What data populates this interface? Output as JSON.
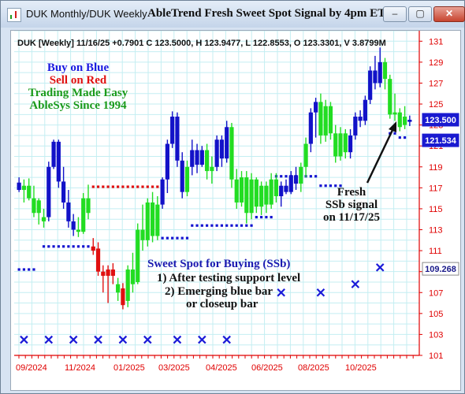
{
  "window": {
    "title": "DUK Monthly/DUK Weekly",
    "chart_title": "AbleTrend Fresh Sweet Spot Signal by 4pm ET",
    "buttons": {
      "minimize": "–",
      "restore": "▢",
      "close": "✕"
    }
  },
  "header_line": "DUK [Weekly] 11/16/25 +0.7901 C 123.5000, H 123.9477, L 122.8553, O 123.3301, V 3.8799M",
  "legend": {
    "line1": "Buy on Blue",
    "line2": "Sell on Red",
    "line3": "Trading Made Easy",
    "line4": "AbleSys Since 1994"
  },
  "ssb_note": {
    "title": "Sweet Spot for Buying (SSb)",
    "line1": "1) After testing support level",
    "line2": "2) Emerging blue bar",
    "line3": "or closeup bar"
  },
  "signal_note": {
    "line1": "Fresh",
    "line2": "SSb signal",
    "line3": "on 11/17/25"
  },
  "colors": {
    "blue_bar": "#1212c8",
    "green_bar": "#22dd22",
    "red_bar": "#e01010",
    "grid": "#c4eef2",
    "axis_red": "#e00000"
  },
  "chart_data": {
    "type": "candlestick",
    "ylim": [
      101,
      132
    ],
    "yticks": [
      "101",
      "103",
      "105",
      "107",
      "109",
      "111",
      "113",
      "115",
      "117",
      "119",
      "121",
      "123",
      "125",
      "127",
      "129",
      "131"
    ],
    "xticks": [
      "09/2024",
      "11/2024",
      "01/2025",
      "03/2025",
      "04/2025",
      "06/2025",
      "08/2025",
      "10/2025"
    ],
    "price_labels": [
      {
        "value": 123.5,
        "text": "123.500",
        "style": "blue"
      },
      {
        "value": 121.534,
        "text": "121.534",
        "style": "blue"
      },
      {
        "value": 109.268,
        "text": "109.268",
        "style": "white"
      }
    ],
    "bars": [
      {
        "o": 117.5,
        "h": 118,
        "l": 116.6,
        "c": 116.8,
        "color": "blue"
      },
      {
        "o": 116.8,
        "h": 117.8,
        "l": 115.6,
        "c": 117.2,
        "color": "green"
      },
      {
        "o": 117.2,
        "h": 117.9,
        "l": 115.8,
        "c": 116,
        "color": "green"
      },
      {
        "o": 116,
        "h": 117.2,
        "l": 114.2,
        "c": 114.6,
        "color": "green"
      },
      {
        "o": 114.6,
        "h": 116,
        "l": 113.5,
        "c": 115.8,
        "color": "green"
      },
      {
        "o": 113.8,
        "h": 115,
        "l": 113.2,
        "c": 114.2,
        "color": "green"
      },
      {
        "o": 114.2,
        "h": 119.5,
        "l": 113.8,
        "c": 119,
        "color": "blue"
      },
      {
        "o": 119,
        "h": 121.6,
        "l": 118.8,
        "c": 121.4,
        "color": "blue"
      },
      {
        "o": 121.4,
        "h": 121.6,
        "l": 117,
        "c": 117.6,
        "color": "blue"
      },
      {
        "o": 117.6,
        "h": 119,
        "l": 115,
        "c": 115.6,
        "color": "blue"
      },
      {
        "o": 115.6,
        "h": 116.8,
        "l": 113.2,
        "c": 113.8,
        "color": "blue"
      },
      {
        "o": 113.8,
        "h": 114.5,
        "l": 112.4,
        "c": 113,
        "color": "blue"
      },
      {
        "o": 113,
        "h": 114.2,
        "l": 112.3,
        "c": 112.8,
        "color": "green"
      },
      {
        "o": 112.8,
        "h": 116.5,
        "l": 112.6,
        "c": 116,
        "color": "green"
      },
      {
        "o": 116,
        "h": 117.3,
        "l": 114,
        "c": 114.6,
        "color": "green"
      },
      {
        "o": 111.4,
        "h": 112.2,
        "l": 110.6,
        "c": 111,
        "color": "red"
      },
      {
        "o": 111.2,
        "h": 111.8,
        "l": 108.6,
        "c": 109,
        "color": "red"
      },
      {
        "o": 109,
        "h": 109.6,
        "l": 107,
        "c": 108.6,
        "color": "red"
      },
      {
        "o": 108.6,
        "h": 109.6,
        "l": 106,
        "c": 109.2,
        "color": "red"
      },
      {
        "o": 109.2,
        "h": 109.8,
        "l": 107.8,
        "c": 108.6,
        "color": "red"
      },
      {
        "o": 107.8,
        "h": 108.4,
        "l": 106.2,
        "c": 107,
        "color": "green"
      },
      {
        "o": 107.4,
        "h": 107.9,
        "l": 105.4,
        "c": 105.8,
        "color": "red"
      },
      {
        "o": 106.2,
        "h": 109.6,
        "l": 105.6,
        "c": 109.2,
        "color": "green"
      },
      {
        "o": 109.2,
        "h": 110.8,
        "l": 107,
        "c": 107.8,
        "color": "green"
      },
      {
        "o": 108,
        "h": 113.6,
        "l": 107.8,
        "c": 113,
        "color": "green"
      },
      {
        "o": 113,
        "h": 115.4,
        "l": 111,
        "c": 112,
        "color": "green"
      },
      {
        "o": 112,
        "h": 116,
        "l": 111.4,
        "c": 115.6,
        "color": "green"
      },
      {
        "o": 115.6,
        "h": 116.6,
        "l": 111.8,
        "c": 112.4,
        "color": "green"
      },
      {
        "o": 112.4,
        "h": 116.2,
        "l": 112,
        "c": 115.4,
        "color": "green"
      },
      {
        "o": 115.4,
        "h": 118,
        "l": 115,
        "c": 117.8,
        "color": "blue"
      },
      {
        "o": 117.8,
        "h": 121.6,
        "l": 116.5,
        "c": 121.2,
        "color": "blue"
      },
      {
        "o": 121.2,
        "h": 124.3,
        "l": 120.8,
        "c": 123.8,
        "color": "blue"
      },
      {
        "o": 123.8,
        "h": 124.2,
        "l": 119,
        "c": 119.6,
        "color": "blue"
      },
      {
        "o": 119.6,
        "h": 120.4,
        "l": 116,
        "c": 116.6,
        "color": "blue"
      },
      {
        "o": 116.6,
        "h": 119.6,
        "l": 116.2,
        "c": 119,
        "color": "green"
      },
      {
        "o": 119,
        "h": 121.6,
        "l": 118.2,
        "c": 120.6,
        "color": "blue"
      },
      {
        "o": 120.6,
        "h": 121.2,
        "l": 118.4,
        "c": 119.2,
        "color": "blue"
      },
      {
        "o": 119.2,
        "h": 121,
        "l": 119,
        "c": 120.6,
        "color": "blue"
      },
      {
        "o": 120.6,
        "h": 121.2,
        "l": 117.8,
        "c": 118.6,
        "color": "green"
      },
      {
        "o": 118.6,
        "h": 120,
        "l": 117.4,
        "c": 119,
        "color": "green"
      },
      {
        "o": 119,
        "h": 122,
        "l": 118.6,
        "c": 121.6,
        "color": "blue"
      },
      {
        "o": 121.6,
        "h": 122,
        "l": 119,
        "c": 119.8,
        "color": "blue"
      },
      {
        "o": 119.8,
        "h": 123.4,
        "l": 119.4,
        "c": 122.8,
        "color": "blue"
      },
      {
        "o": 122.8,
        "h": 123.2,
        "l": 117,
        "c": 117.8,
        "color": "green"
      },
      {
        "o": 117.8,
        "h": 118.8,
        "l": 115,
        "c": 115.6,
        "color": "green"
      },
      {
        "o": 115.6,
        "h": 118.6,
        "l": 115.2,
        "c": 118,
        "color": "green"
      },
      {
        "o": 118,
        "h": 118.6,
        "l": 113.6,
        "c": 114.6,
        "color": "green"
      },
      {
        "o": 114.6,
        "h": 118.4,
        "l": 114,
        "c": 117.8,
        "color": "green"
      },
      {
        "o": 117.8,
        "h": 118,
        "l": 114.6,
        "c": 115.2,
        "color": "green"
      },
      {
        "o": 115.2,
        "h": 117.6,
        "l": 114.4,
        "c": 117.2,
        "color": "green"
      },
      {
        "o": 117.2,
        "h": 117.6,
        "l": 114.6,
        "c": 115.4,
        "color": "green"
      },
      {
        "o": 115.4,
        "h": 118.4,
        "l": 115,
        "c": 117.8,
        "color": "green"
      },
      {
        "o": 117.8,
        "h": 118.4,
        "l": 115.6,
        "c": 116.2,
        "color": "green"
      },
      {
        "o": 116.2,
        "h": 117.6,
        "l": 115.2,
        "c": 117.2,
        "color": "blue"
      },
      {
        "o": 117.2,
        "h": 117.8,
        "l": 116.4,
        "c": 116.6,
        "color": "blue"
      },
      {
        "o": 116.6,
        "h": 118.6,
        "l": 116.4,
        "c": 118.2,
        "color": "blue"
      },
      {
        "o": 118.2,
        "h": 119,
        "l": 116.8,
        "c": 117.4,
        "color": "blue"
      },
      {
        "o": 117.4,
        "h": 119.4,
        "l": 116.6,
        "c": 119,
        "color": "green"
      },
      {
        "o": 119,
        "h": 121.8,
        "l": 118,
        "c": 121.2,
        "color": "green"
      },
      {
        "o": 121.2,
        "h": 124.6,
        "l": 120.4,
        "c": 124.2,
        "color": "blue"
      },
      {
        "o": 124.2,
        "h": 125.6,
        "l": 121.8,
        "c": 125.2,
        "color": "blue"
      },
      {
        "o": 125.2,
        "h": 126,
        "l": 121.2,
        "c": 122,
        "color": "green"
      },
      {
        "o": 122,
        "h": 125.4,
        "l": 121.4,
        "c": 124.8,
        "color": "green"
      },
      {
        "o": 124.8,
        "h": 125.2,
        "l": 121.6,
        "c": 122.2,
        "color": "green"
      },
      {
        "o": 122.2,
        "h": 123,
        "l": 119.4,
        "c": 120,
        "color": "green"
      },
      {
        "o": 120,
        "h": 122.8,
        "l": 119.6,
        "c": 122.2,
        "color": "green"
      },
      {
        "o": 122.2,
        "h": 122.6,
        "l": 119.8,
        "c": 120.4,
        "color": "green"
      },
      {
        "o": 120.4,
        "h": 122.6,
        "l": 119.8,
        "c": 122,
        "color": "blue"
      },
      {
        "o": 122,
        "h": 124.2,
        "l": 121.6,
        "c": 123.8,
        "color": "blue"
      },
      {
        "o": 123.8,
        "h": 124.4,
        "l": 122.8,
        "c": 123.4,
        "color": "blue"
      },
      {
        "o": 123.4,
        "h": 125.8,
        "l": 123,
        "c": 125.4,
        "color": "blue"
      },
      {
        "o": 125.4,
        "h": 128.6,
        "l": 125,
        "c": 128.2,
        "color": "blue"
      },
      {
        "o": 128.2,
        "h": 129.6,
        "l": 126.4,
        "c": 127,
        "color": "blue"
      },
      {
        "o": 127,
        "h": 130.4,
        "l": 126.6,
        "c": 129,
        "color": "blue"
      },
      {
        "o": 129,
        "h": 129.4,
        "l": 126.4,
        "c": 127.4,
        "color": "green"
      },
      {
        "o": 127.4,
        "h": 127.8,
        "l": 123.6,
        "c": 124,
        "color": "green"
      },
      {
        "o": 124,
        "h": 126,
        "l": 123.4,
        "c": 124.2,
        "color": "green"
      },
      {
        "o": 124.2,
        "h": 124.6,
        "l": 122.4,
        "c": 122.8,
        "color": "green"
      },
      {
        "o": 123.8,
        "h": 124.8,
        "l": 122.6,
        "c": 123,
        "color": "green"
      },
      {
        "o": 123.3,
        "h": 123.9,
        "l": 122.9,
        "c": 123.5,
        "color": "blue"
      }
    ],
    "support_dots": [
      {
        "from": 0,
        "to": 3,
        "value": 109.2
      },
      {
        "from": 5,
        "to": 14,
        "value": 111.4
      },
      {
        "from": 29,
        "to": 34,
        "value": 112.2
      },
      {
        "from": 35,
        "to": 47,
        "value": 113.4
      },
      {
        "from": 48,
        "to": 51,
        "value": 114.2
      },
      {
        "from": 52,
        "to": 60,
        "value": 118.1
      },
      {
        "from": 61,
        "to": 65,
        "value": 117.2
      },
      {
        "from": 75,
        "to": 76,
        "value": 122.2
      },
      {
        "from": 77,
        "to": 78,
        "value": 121.8
      }
    ],
    "resistance_dots": [
      {
        "from": 15,
        "to": 29,
        "value": 117.1
      }
    ],
    "ssb_markers": [
      {
        "bar": 1,
        "value": 102.5
      },
      {
        "bar": 6,
        "value": 102.5
      },
      {
        "bar": 11,
        "value": 102.5
      },
      {
        "bar": 16,
        "value": 102.5
      },
      {
        "bar": 21,
        "value": 102.5
      },
      {
        "bar": 26,
        "value": 102.5
      },
      {
        "bar": 32,
        "value": 102.5
      },
      {
        "bar": 37,
        "value": 102.5
      },
      {
        "bar": 42,
        "value": 102.5
      },
      {
        "bar": 53,
        "value": 107
      },
      {
        "bar": 61,
        "value": 107
      },
      {
        "bar": 68,
        "value": 107.8
      },
      {
        "bar": 73,
        "value": 109.4
      }
    ]
  }
}
